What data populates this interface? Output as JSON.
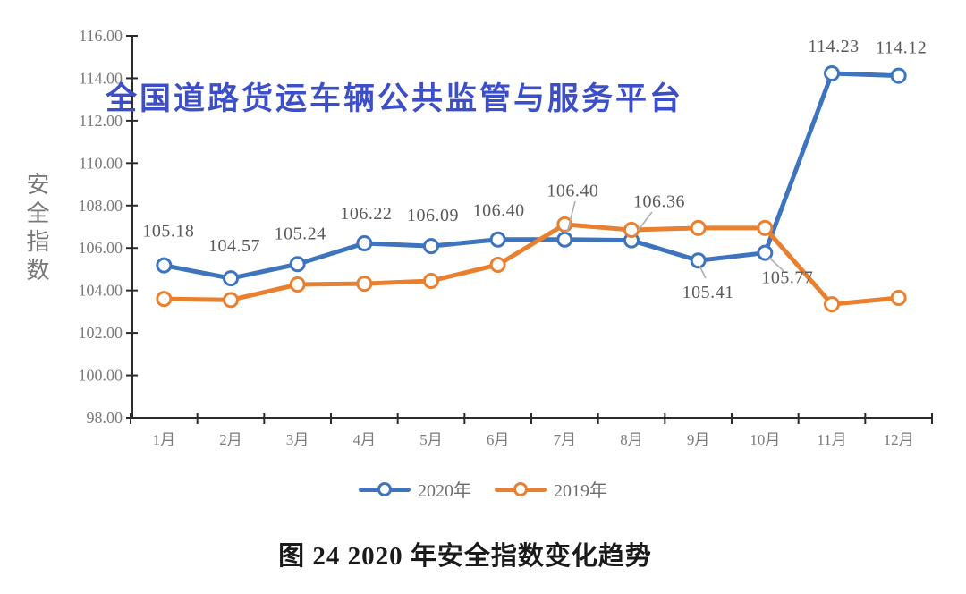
{
  "page": {
    "background": "#ffffff"
  },
  "watermark": {
    "text": "全国道路货运车辆公共监管与服务平台",
    "color": "#3C4FC8"
  },
  "y_axis_title": "安全指数",
  "caption": "图 24 2020 年安全指数变化趋势",
  "legend": [
    {
      "label": "2020年",
      "color": "#3E74BE"
    },
    {
      "label": "2019年",
      "color": "#E9802F"
    }
  ],
  "colors": {
    "series_2020": "#3E74BE",
    "series_2019": "#E9802F",
    "axis": "#2b2b2b",
    "tick_label": "#7a7a7a",
    "data_label": "#5a5a5a",
    "leader_line": "#aab0b6",
    "watermark": "#3C4FC8"
  },
  "chart_data": {
    "type": "line",
    "title": "",
    "ylabel": "安全指数",
    "xlabel": "",
    "categories": [
      "1月",
      "2月",
      "3月",
      "4月",
      "5月",
      "6月",
      "7月",
      "8月",
      "9月",
      "10月",
      "11月",
      "12月"
    ],
    "series": [
      {
        "name": "2020年",
        "color": "#3E74BE",
        "marker": "open-circle",
        "values": [
          105.18,
          104.57,
          105.24,
          106.22,
          106.09,
          106.4,
          106.4,
          106.36,
          105.41,
          105.77,
          114.23,
          114.12
        ],
        "data_labels": [
          "105.18",
          "104.57",
          "105.24",
          "106.22",
          "106.09",
          "106.40",
          "106.40",
          "106.36",
          "105.41",
          "105.77",
          "114.23",
          "114.12"
        ]
      },
      {
        "name": "2019年",
        "color": "#E9802F",
        "marker": "open-circle",
        "values": [
          103.6,
          103.55,
          104.28,
          104.32,
          104.45,
          105.21,
          107.11,
          106.85,
          106.94,
          106.94,
          103.35,
          103.65
        ],
        "values_note": "estimated from plot; series has no data labels in image"
      }
    ],
    "ylim": [
      98,
      116
    ],
    "ytick_step": 2,
    "ytick_labels": [
      "98.00",
      "100.00",
      "102.00",
      "104.00",
      "106.00",
      "108.00",
      "110.00",
      "112.00",
      "114.00",
      "116.00"
    ],
    "grid": false,
    "legend_position": "bottom"
  }
}
